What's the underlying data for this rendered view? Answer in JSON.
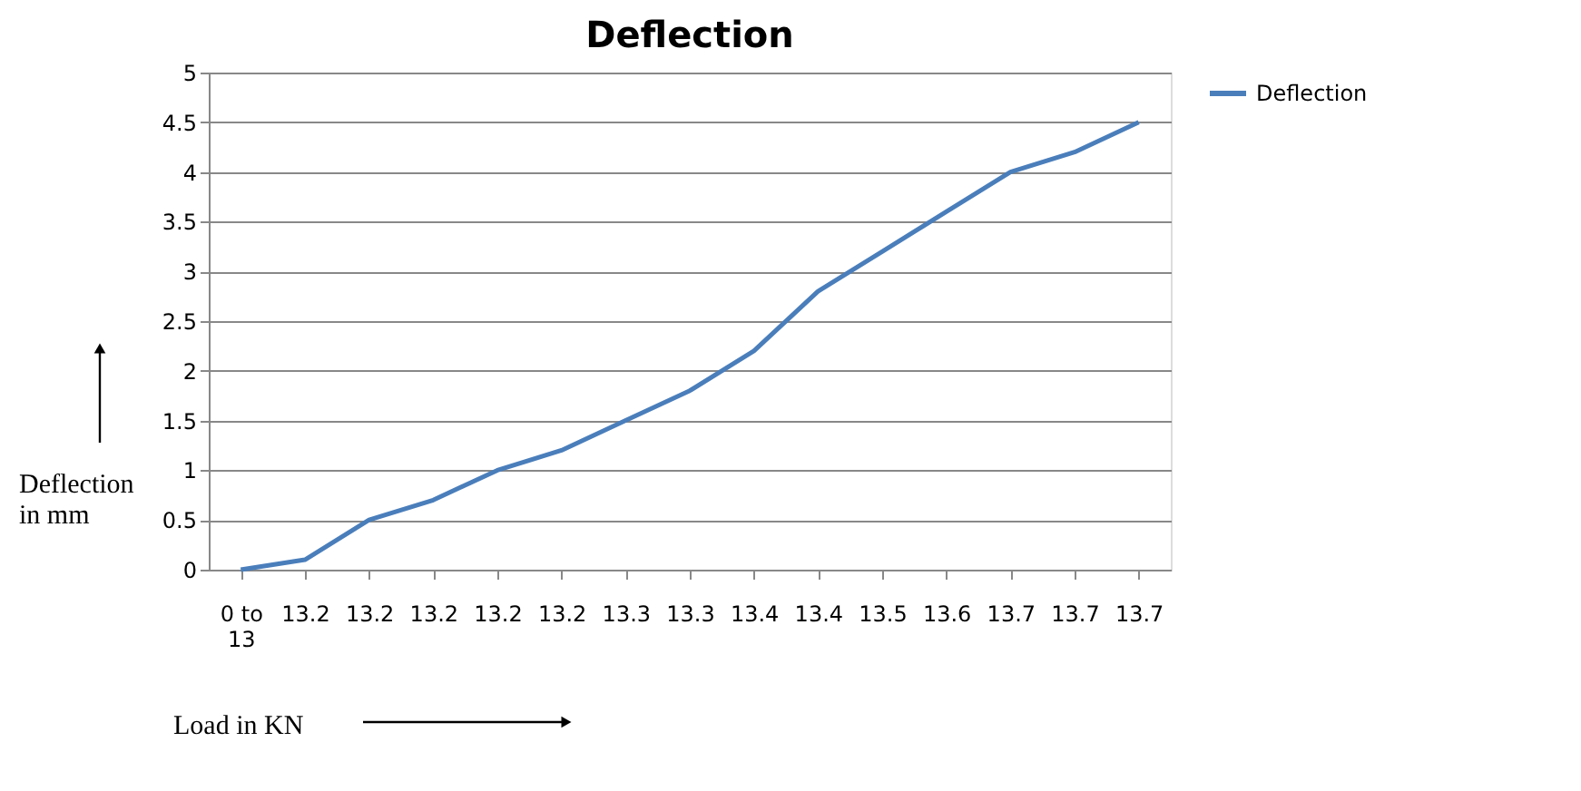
{
  "chart_data": {
    "type": "line",
    "title": "Deflection",
    "xlabel": "Load in KN",
    "ylabel": "Deflection in mm",
    "categories": [
      "0 to 13",
      "13.2",
      "13.2",
      "13.2",
      "13.2",
      "13.2",
      "13.3",
      "13.3",
      "13.4",
      "13.4",
      "13.5",
      "13.6",
      "13.7",
      "13.7",
      "13.7"
    ],
    "series": [
      {
        "name": "Deflection",
        "color": "#4a7ebb",
        "values": [
          0,
          0.1,
          0.5,
          0.7,
          1.0,
          1.2,
          1.5,
          1.8,
          2.2,
          2.8,
          3.2,
          3.6,
          4.0,
          4.2,
          4.5
        ]
      }
    ],
    "ylim": [
      0,
      5
    ],
    "yticks": [
      0,
      0.5,
      1,
      1.5,
      2,
      2.5,
      3,
      3.5,
      4,
      4.5,
      5
    ],
    "grid": "y",
    "legend": "right",
    "marker": "none",
    "line_style": "solid"
  }
}
